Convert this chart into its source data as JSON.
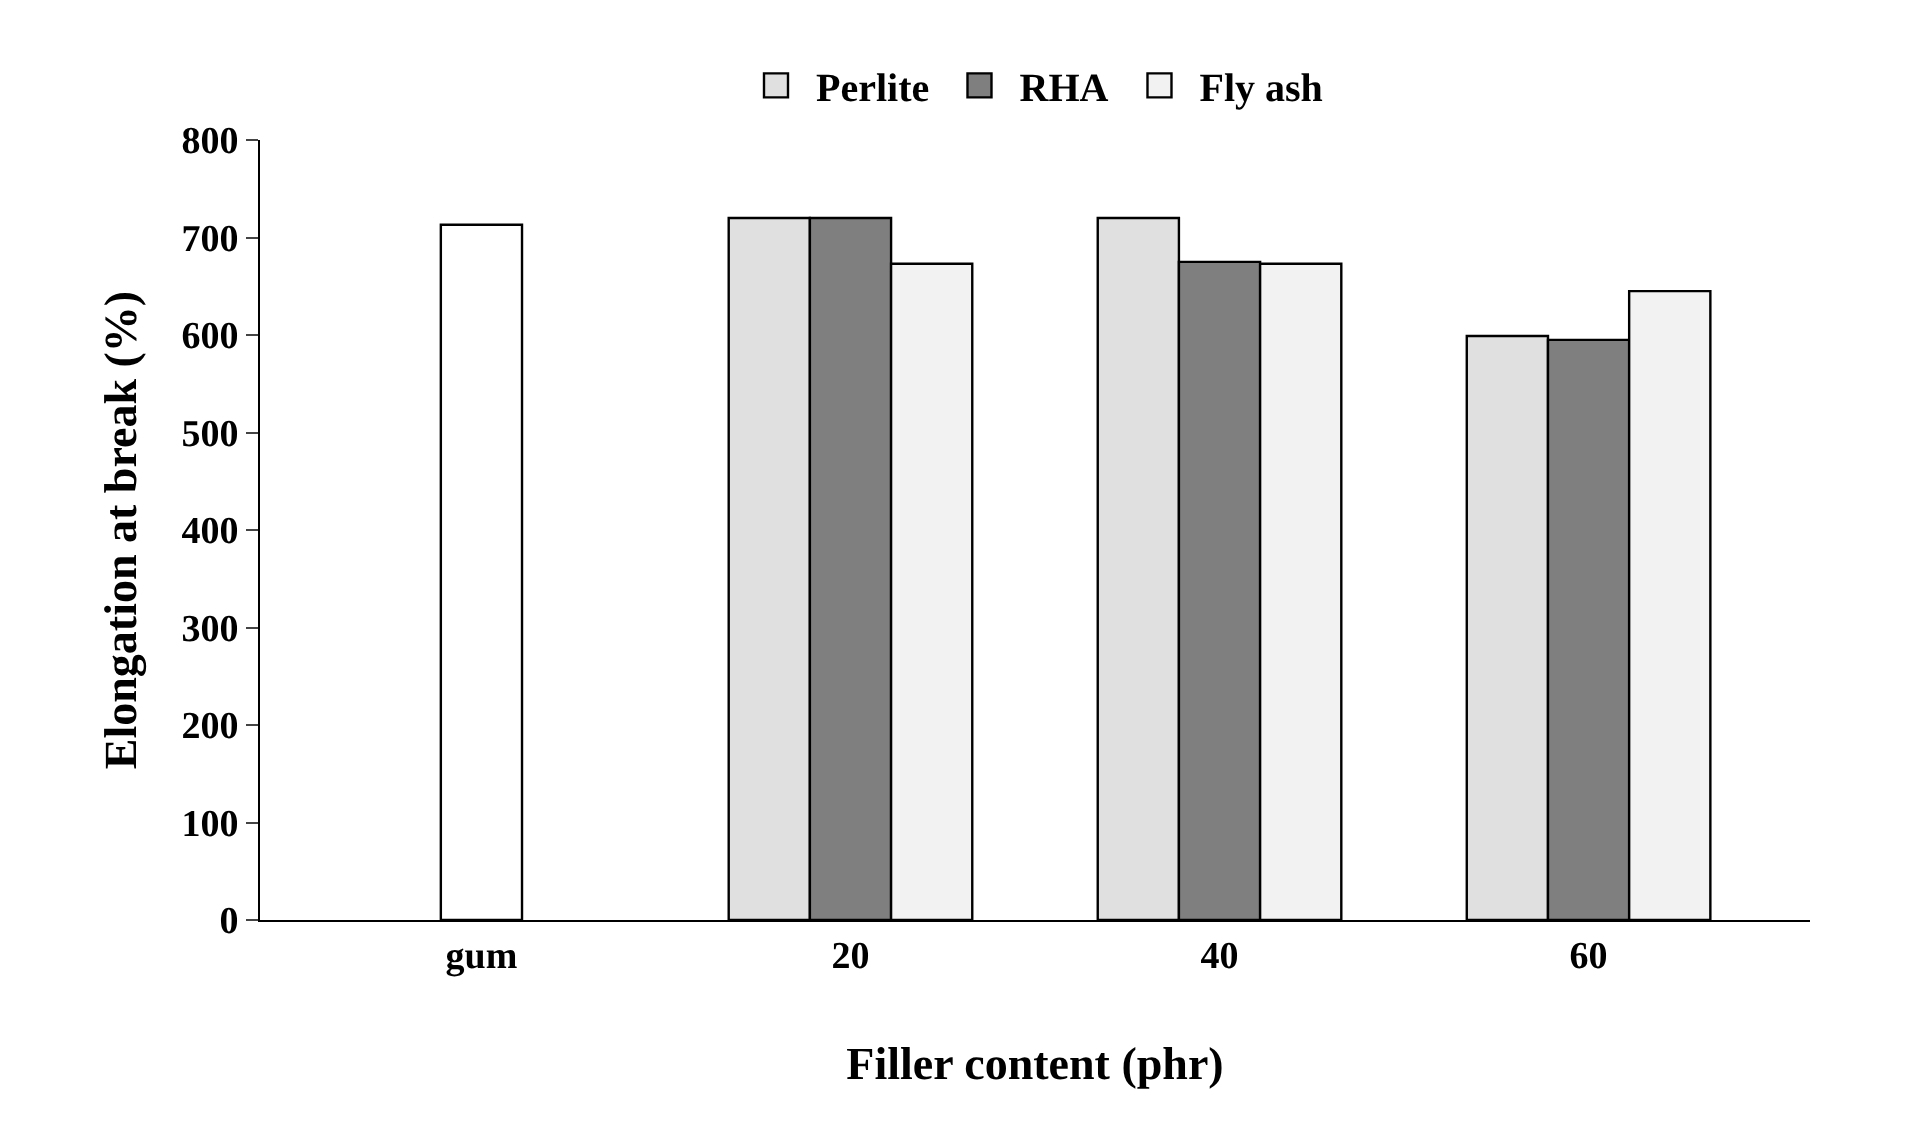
{
  "chart_data": {
    "type": "bar",
    "xlabel": "Filler content (phr)",
    "ylabel": "Elongation at break (%)",
    "categories": [
      "gum",
      "20",
      "40",
      "60"
    ],
    "series": [
      {
        "color": "#ffffff",
        "values": [
          713,
          null,
          null,
          null
        ]
      },
      {
        "name": "Perlite",
        "color": "#e0e0e0",
        "values": [
          null,
          720,
          720,
          599
        ]
      },
      {
        "name": "RHA",
        "color": "#7f7f7f",
        "values": [
          null,
          720,
          675,
          595
        ]
      },
      {
        "name": "Fly ash",
        "color": "#f2f2f2",
        "values": [
          null,
          673,
          673,
          645
        ]
      }
    ],
    "ylim": [
      0,
      800
    ],
    "yticks": [
      0,
      100,
      200,
      300,
      400,
      500,
      600,
      700,
      800
    ],
    "legend": "top"
  }
}
